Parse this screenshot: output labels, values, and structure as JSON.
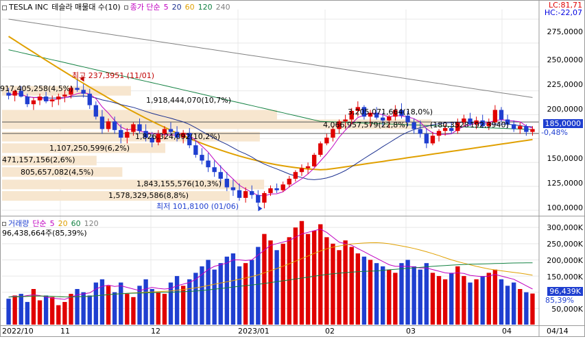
{
  "header": {
    "ticker": "TESLA INC",
    "chart_name": "테슬라 매물대 수(10)",
    "ma_label": "종가 단순",
    "ma_periods": [
      {
        "label": "5",
        "color": "#c000c0"
      },
      {
        "label": "20",
        "color": "#1a2f8f"
      },
      {
        "label": "60",
        "color": "#e0a000"
      },
      {
        "label": "120",
        "color": "#108040"
      },
      {
        "label": "240",
        "color": "#808080"
      }
    ]
  },
  "corner": {
    "lc": "LC:81,71",
    "hc": "HC:-22,07"
  },
  "price_axis": [
    "300,0000",
    "275,0000",
    "250,0000",
    "225,0000",
    "200,0000",
    "175,0000",
    "150,0000",
    "125,0000",
    "100,0000"
  ],
  "current_price": "185,0000",
  "current_change": "-0,48%",
  "annotations": {
    "high": "최고 237,3951 (11/01)",
    "low": "최저 101,8100 (01/06)"
  },
  "volume_profile": [
    {
      "label": "917,405,258(4,5%)",
      "price": 225,
      "width": 0.3
    },
    {
      "label": "1,918,444,070(10,7%)",
      "price": 200,
      "width": 0.64
    },
    {
      "label": "4,066,957,579(22,8%)",
      "price": 190,
      "width": 1.0
    },
    {
      "label": "1,826,324,092(10,2%)",
      "price": 177,
      "width": 0.6
    },
    {
      "label": "1,107,250,599(6,2%)",
      "price": 165,
      "width": 0.38
    },
    {
      "label": "471,157,156(2,6%)",
      "price": 152,
      "width": 0.22
    },
    {
      "label": "805,657,082(4,5%)",
      "price": 140,
      "width": 0.28
    },
    {
      "label": "1,843,155,576(10,3%)",
      "price": 127,
      "width": 0.61
    },
    {
      "label": "1,578,329,586(8,8%)",
      "price": 115,
      "width": 0.53
    }
  ],
  "extra_vp_labels": [
    "3,205,071,664(18,0%)",
    "(180,3528",
    "192,3940)"
  ],
  "volume_header": {
    "label": "거래량",
    "ma_label": "단순",
    "periods": [
      {
        "label": "5",
        "color": "#c000c0"
      },
      {
        "label": "20",
        "color": "#e0a000"
      },
      {
        "label": "60",
        "color": "#108040"
      },
      {
        "label": "120",
        "color": "#808080"
      }
    ],
    "volume_value": "96,438,664주(85,39%)"
  },
  "volume_axis": [
    "300,000K",
    "250,000K",
    "200,000K",
    "150,000K",
    "100,000K",
    "50,000K"
  ],
  "volume_current": "96,439K",
  "volume_current_pct": "85,39%",
  "date_axis": [
    "2022/10",
    "11",
    "12",
    "2023/01",
    "02",
    "03",
    "04",
    "04/14"
  ],
  "colors": {
    "up": "#e00000",
    "down": "#1f3fd0",
    "vp": "#f7e6cf"
  },
  "chart_data": {
    "type": "candlestick",
    "ylim": [
      95,
      310
    ],
    "candles": [
      [
        223,
        228,
        216,
        220
      ],
      [
        220,
        226,
        214,
        225
      ],
      [
        225,
        230,
        218,
        219
      ],
      [
        219,
        222,
        208,
        211
      ],
      [
        211,
        218,
        205,
        215
      ],
      [
        215,
        222,
        210,
        219
      ],
      [
        219,
        224,
        212,
        214
      ],
      [
        214,
        220,
        208,
        216
      ],
      [
        216,
        222,
        210,
        219
      ],
      [
        219,
        226,
        213,
        221
      ],
      [
        221,
        230,
        217,
        228
      ],
      [
        228,
        237,
        224,
        226
      ],
      [
        226,
        232,
        218,
        222
      ],
      [
        222,
        227,
        206,
        210
      ],
      [
        210,
        214,
        195,
        198
      ],
      [
        198,
        205,
        180,
        185
      ],
      [
        185,
        196,
        182,
        193
      ],
      [
        193,
        198,
        180,
        184
      ],
      [
        184,
        190,
        170,
        176
      ],
      [
        176,
        186,
        170,
        182
      ],
      [
        182,
        192,
        178,
        190
      ],
      [
        190,
        196,
        180,
        183
      ],
      [
        183,
        190,
        172,
        176
      ],
      [
        176,
        182,
        166,
        171
      ],
      [
        171,
        184,
        168,
        180
      ],
      [
        180,
        188,
        174,
        185
      ],
      [
        185,
        192,
        178,
        182
      ],
      [
        182,
        188,
        172,
        176
      ],
      [
        176,
        184,
        170,
        181
      ],
      [
        181,
        186,
        165,
        168
      ],
      [
        168,
        173,
        155,
        158
      ],
      [
        158,
        165,
        148,
        152
      ],
      [
        152,
        160,
        140,
        145
      ],
      [
        145,
        152,
        135,
        140
      ],
      [
        140,
        147,
        128,
        133
      ],
      [
        133,
        140,
        120,
        124
      ],
      [
        124,
        132,
        115,
        121
      ],
      [
        121,
        128,
        110,
        113
      ],
      [
        113,
        124,
        108,
        120
      ],
      [
        120,
        126,
        112,
        116
      ],
      [
        116,
        121,
        104,
        108
      ],
      [
        108,
        120,
        102,
        118
      ],
      [
        118,
        126,
        115,
        123
      ],
      [
        123,
        128,
        118,
        121
      ],
      [
        121,
        130,
        119,
        127
      ],
      [
        127,
        136,
        124,
        133
      ],
      [
        133,
        142,
        130,
        140
      ],
      [
        140,
        148,
        136,
        144
      ],
      [
        144,
        150,
        138,
        146
      ],
      [
        146,
        160,
        145,
        158
      ],
      [
        158,
        172,
        156,
        170
      ],
      [
        170,
        180,
        168,
        176
      ],
      [
        176,
        188,
        172,
        185
      ],
      [
        185,
        195,
        180,
        193
      ],
      [
        193,
        200,
        185,
        195
      ],
      [
        195,
        207,
        190,
        204
      ],
      [
        204,
        214,
        198,
        208
      ],
      [
        208,
        210,
        195,
        198
      ],
      [
        198,
        205,
        188,
        202
      ],
      [
        202,
        208,
        195,
        197
      ],
      [
        197,
        202,
        188,
        194
      ],
      [
        194,
        200,
        186,
        198
      ],
      [
        198,
        210,
        194,
        205
      ],
      [
        205,
        212,
        196,
        199
      ],
      [
        199,
        204,
        188,
        192
      ],
      [
        192,
        196,
        180,
        185
      ],
      [
        185,
        194,
        176,
        180
      ],
      [
        180,
        186,
        165,
        170
      ],
      [
        170,
        182,
        168,
        178
      ],
      [
        178,
        185,
        172,
        183
      ],
      [
        183,
        190,
        178,
        186
      ],
      [
        186,
        192,
        180,
        183
      ],
      [
        183,
        196,
        180,
        192
      ],
      [
        192,
        200,
        188,
        196
      ],
      [
        196,
        202,
        188,
        190
      ],
      [
        190,
        198,
        185,
        194
      ],
      [
        194,
        200,
        186,
        188
      ],
      [
        188,
        196,
        184,
        192
      ],
      [
        192,
        210,
        190,
        205
      ],
      [
        205,
        208,
        192,
        195
      ],
      [
        195,
        200,
        186,
        190
      ],
      [
        190,
        194,
        182,
        185
      ],
      [
        185,
        192,
        180,
        188
      ],
      [
        188,
        190,
        178,
        182
      ],
      [
        182,
        188,
        178,
        185
      ]
    ],
    "volumes": [
      80,
      90,
      95,
      70,
      110,
      75,
      90,
      85,
      60,
      70,
      95,
      110,
      100,
      90,
      130,
      140,
      120,
      100,
      130,
      95,
      85,
      120,
      140,
      110,
      100,
      95,
      130,
      150,
      120,
      140,
      160,
      180,
      200,
      170,
      190,
      210,
      220,
      180,
      190,
      200,
      240,
      280,
      260,
      230,
      250,
      270,
      300,
      320,
      280,
      290,
      310,
      270,
      250,
      230,
      260,
      240,
      220,
      210,
      200,
      190,
      180,
      170,
      160,
      190,
      200,
      180,
      170,
      190,
      160,
      150,
      140,
      160,
      180,
      150,
      130,
      140,
      150,
      160,
      170,
      140,
      120,
      130,
      110,
      100,
      96
    ],
    "vol_ma5": [
      85,
      88,
      86,
      90,
      92,
      90,
      85,
      82,
      80,
      78,
      85,
      92,
      95,
      98,
      110,
      118,
      122,
      118,
      120,
      115,
      110,
      105,
      110,
      115,
      112,
      110,
      112,
      120,
      125,
      130,
      140,
      155,
      170,
      180,
      185,
      190,
      200,
      200,
      198,
      200,
      215,
      230,
      245,
      250,
      255,
      260,
      270,
      280,
      285,
      290,
      295,
      285,
      270,
      255,
      250,
      245,
      235,
      225,
      215,
      205,
      195,
      185,
      180,
      180,
      180,
      178,
      175,
      175,
      170,
      165,
      160,
      158,
      160,
      158,
      152,
      150,
      148,
      150,
      155,
      150,
      145,
      140,
      130,
      120,
      110
    ],
    "xlabel": "",
    "ylabel": ""
  }
}
